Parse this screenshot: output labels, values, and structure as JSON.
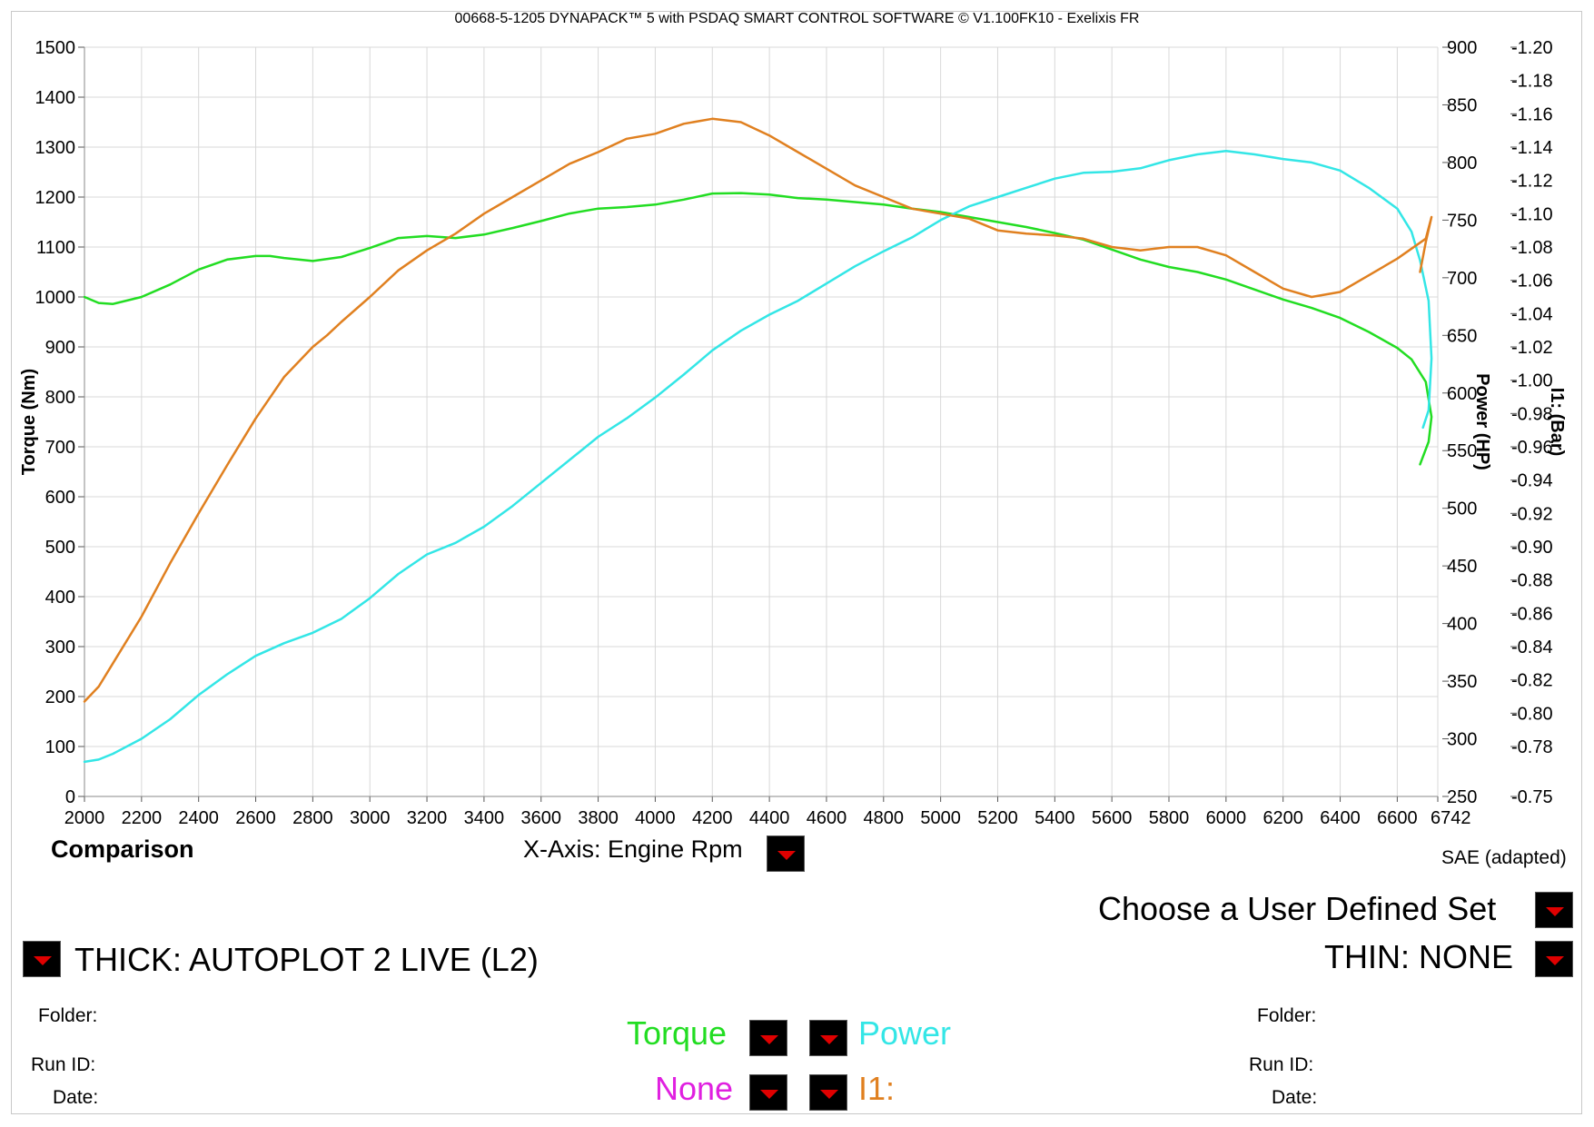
{
  "header": {
    "title": "00668-5-1205 DYNAPACK™ 5 with PSDAQ SMART CONTROL SOFTWARE © V1.100FK10 - Exelixis FR"
  },
  "chart_data": {
    "type": "line",
    "x_ticks": [
      "2000",
      "2200",
      "2400",
      "2600",
      "2800",
      "3000",
      "3200",
      "3400",
      "3600",
      "3800",
      "4000",
      "4200",
      "4400",
      "4600",
      "4800",
      "5000",
      "5200",
      "5400",
      "5600",
      "5800",
      "6000",
      "6200",
      "6400",
      "6600",
      "6742"
    ],
    "xlim": [
      2000,
      6742
    ],
    "axes": {
      "left": {
        "label": "Torque (Nm)",
        "range": [
          0,
          1500
        ],
        "ticks": [
          "0",
          "100",
          "200",
          "300",
          "400",
          "500",
          "600",
          "700",
          "800",
          "900",
          "1000",
          "1100",
          "1200",
          "1300",
          "1400",
          "1500"
        ]
      },
      "right1": {
        "label": "Power (HP)",
        "range": [
          250,
          900
        ],
        "ticks": [
          "250",
          "300",
          "350",
          "400",
          "450",
          "500",
          "550",
          "600",
          "650",
          "700",
          "750",
          "800",
          "850",
          "900"
        ]
      },
      "right2": {
        "label": "I1: (Bar)",
        "range": [
          -0.75,
          -1.2
        ],
        "ticks": [
          "-0.75",
          "-0.78",
          "-0.80",
          "-0.82",
          "-0.84",
          "-0.86",
          "-0.88",
          "-0.90",
          "-0.92",
          "-0.94",
          "-0.96",
          "-0.98",
          "-1.00",
          "-1.02",
          "-1.04",
          "-1.06",
          "-1.08",
          "-1.10",
          "-1.12",
          "-1.14",
          "-1.16",
          "-1.18",
          "-1.20"
        ]
      }
    },
    "grid": true,
    "series": [
      {
        "name": "Torque",
        "axis": "left",
        "color": "#22dd22",
        "points": [
          [
            2000,
            1000
          ],
          [
            2050,
            988
          ],
          [
            2100,
            986
          ],
          [
            2200,
            1000
          ],
          [
            2300,
            1025
          ],
          [
            2400,
            1055
          ],
          [
            2500,
            1075
          ],
          [
            2600,
            1082
          ],
          [
            2650,
            1082
          ],
          [
            2700,
            1078
          ],
          [
            2800,
            1072
          ],
          [
            2900,
            1080
          ],
          [
            3000,
            1098
          ],
          [
            3100,
            1118
          ],
          [
            3200,
            1122
          ],
          [
            3300,
            1118
          ],
          [
            3400,
            1125
          ],
          [
            3500,
            1138
          ],
          [
            3600,
            1152
          ],
          [
            3700,
            1167
          ],
          [
            3800,
            1177
          ],
          [
            3900,
            1180
          ],
          [
            4000,
            1185
          ],
          [
            4100,
            1195
          ],
          [
            4200,
            1207
          ],
          [
            4300,
            1208
          ],
          [
            4400,
            1205
          ],
          [
            4500,
            1198
          ],
          [
            4600,
            1195
          ],
          [
            4700,
            1190
          ],
          [
            4800,
            1185
          ],
          [
            4900,
            1177
          ],
          [
            5000,
            1170
          ],
          [
            5100,
            1160
          ],
          [
            5200,
            1150
          ],
          [
            5300,
            1140
          ],
          [
            5400,
            1128
          ],
          [
            5500,
            1115
          ],
          [
            5600,
            1095
          ],
          [
            5700,
            1075
          ],
          [
            5800,
            1060
          ],
          [
            5900,
            1050
          ],
          [
            6000,
            1035
          ],
          [
            6100,
            1015
          ],
          [
            6200,
            995
          ],
          [
            6300,
            978
          ],
          [
            6400,
            958
          ],
          [
            6500,
            930
          ],
          [
            6600,
            898
          ],
          [
            6650,
            875
          ],
          [
            6700,
            830
          ],
          [
            6720,
            760
          ],
          [
            6710,
            710
          ],
          [
            6680,
            665
          ]
        ]
      },
      {
        "name": "Power",
        "axis": "right1",
        "color": "#33e6e6",
        "points": [
          [
            2000,
            280
          ],
          [
            2050,
            282
          ],
          [
            2100,
            287
          ],
          [
            2200,
            300
          ],
          [
            2300,
            317
          ],
          [
            2400,
            338
          ],
          [
            2500,
            356
          ],
          [
            2600,
            372
          ],
          [
            2700,
            383
          ],
          [
            2800,
            392
          ],
          [
            2900,
            404
          ],
          [
            3000,
            422
          ],
          [
            3100,
            443
          ],
          [
            3200,
            460
          ],
          [
            3300,
            470
          ],
          [
            3400,
            484
          ],
          [
            3500,
            502
          ],
          [
            3600,
            522
          ],
          [
            3700,
            542
          ],
          [
            3800,
            562
          ],
          [
            3900,
            578
          ],
          [
            4000,
            596
          ],
          [
            4100,
            616
          ],
          [
            4200,
            637
          ],
          [
            4300,
            654
          ],
          [
            4400,
            668
          ],
          [
            4500,
            680
          ],
          [
            4600,
            695
          ],
          [
            4700,
            710
          ],
          [
            4800,
            723
          ],
          [
            4900,
            735
          ],
          [
            5000,
            750
          ],
          [
            5100,
            762
          ],
          [
            5200,
            770
          ],
          [
            5300,
            778
          ],
          [
            5400,
            786
          ],
          [
            5500,
            791
          ],
          [
            5600,
            792
          ],
          [
            5700,
            795
          ],
          [
            5800,
            802
          ],
          [
            5900,
            807
          ],
          [
            6000,
            810
          ],
          [
            6100,
            807
          ],
          [
            6200,
            803
          ],
          [
            6300,
            800
          ],
          [
            6400,
            793
          ],
          [
            6500,
            778
          ],
          [
            6600,
            760
          ],
          [
            6650,
            740
          ],
          [
            6680,
            715
          ],
          [
            6710,
            680
          ],
          [
            6720,
            630
          ],
          [
            6710,
            585
          ],
          [
            6690,
            570
          ]
        ]
      },
      {
        "name": "I1:",
        "axis": "right2",
        "color": "#e08020",
        "points": [
          [
            2000,
            -0.807
          ],
          [
            2050,
            -0.816
          ],
          [
            2100,
            -0.83
          ],
          [
            2200,
            -0.858
          ],
          [
            2300,
            -0.89
          ],
          [
            2400,
            -0.92
          ],
          [
            2500,
            -0.949
          ],
          [
            2600,
            -0.977
          ],
          [
            2700,
            -1.002
          ],
          [
            2800,
            -1.02
          ],
          [
            2850,
            -1.027
          ],
          [
            2900,
            -1.035
          ],
          [
            3000,
            -1.05
          ],
          [
            3100,
            -1.066
          ],
          [
            3200,
            -1.078
          ],
          [
            3300,
            -1.088
          ],
          [
            3400,
            -1.1
          ],
          [
            3500,
            -1.11
          ],
          [
            3600,
            -1.12
          ],
          [
            3700,
            -1.13
          ],
          [
            3800,
            -1.137
          ],
          [
            3900,
            -1.145
          ],
          [
            4000,
            -1.148
          ],
          [
            4100,
            -1.154
          ],
          [
            4200,
            -1.157
          ],
          [
            4300,
            -1.155
          ],
          [
            4400,
            -1.147
          ],
          [
            4500,
            -1.137
          ],
          [
            4600,
            -1.127
          ],
          [
            4700,
            -1.117
          ],
          [
            4800,
            -1.11
          ],
          [
            4900,
            -1.103
          ],
          [
            5000,
            -1.1
          ],
          [
            5100,
            -1.097
          ],
          [
            5200,
            -1.09
          ],
          [
            5300,
            -1.088
          ],
          [
            5400,
            -1.087
          ],
          [
            5500,
            -1.085
          ],
          [
            5600,
            -1.08
          ],
          [
            5700,
            -1.078
          ],
          [
            5800,
            -1.08
          ],
          [
            5900,
            -1.08
          ],
          [
            6000,
            -1.075
          ],
          [
            6100,
            -1.065
          ],
          [
            6200,
            -1.055
          ],
          [
            6300,
            -1.05
          ],
          [
            6400,
            -1.053
          ],
          [
            6500,
            -1.063
          ],
          [
            6600,
            -1.073
          ],
          [
            6700,
            -1.085
          ],
          [
            6720,
            -1.098
          ],
          [
            6700,
            -1.083
          ],
          [
            6680,
            -1.065
          ]
        ]
      }
    ]
  },
  "bottom": {
    "comparison": "Comparison",
    "xaxis_label": "X-Axis: Engine Rpm",
    "sae": "SAE (adapted)",
    "user_set": "Choose a User Defined Set",
    "thick": "THICK: AUTOPLOT 2 LIVE (L2)",
    "thin": "THIN: NONE",
    "folder_left": "Folder:",
    "runid_left": "Run ID:",
    "date_left": "Date:",
    "folder_right": "Folder:",
    "runid_right": "Run ID:",
    "date_right": "Date:",
    "torque": "Torque",
    "power": "Power",
    "none": "None",
    "i1": "I1:",
    "torque_color": "#22dd22",
    "power_color": "#33e6e6",
    "none_color": "#e020e0",
    "i1_color": "#e08020"
  },
  "icons": {
    "dropdown": "dropdown-arrow-icon"
  }
}
